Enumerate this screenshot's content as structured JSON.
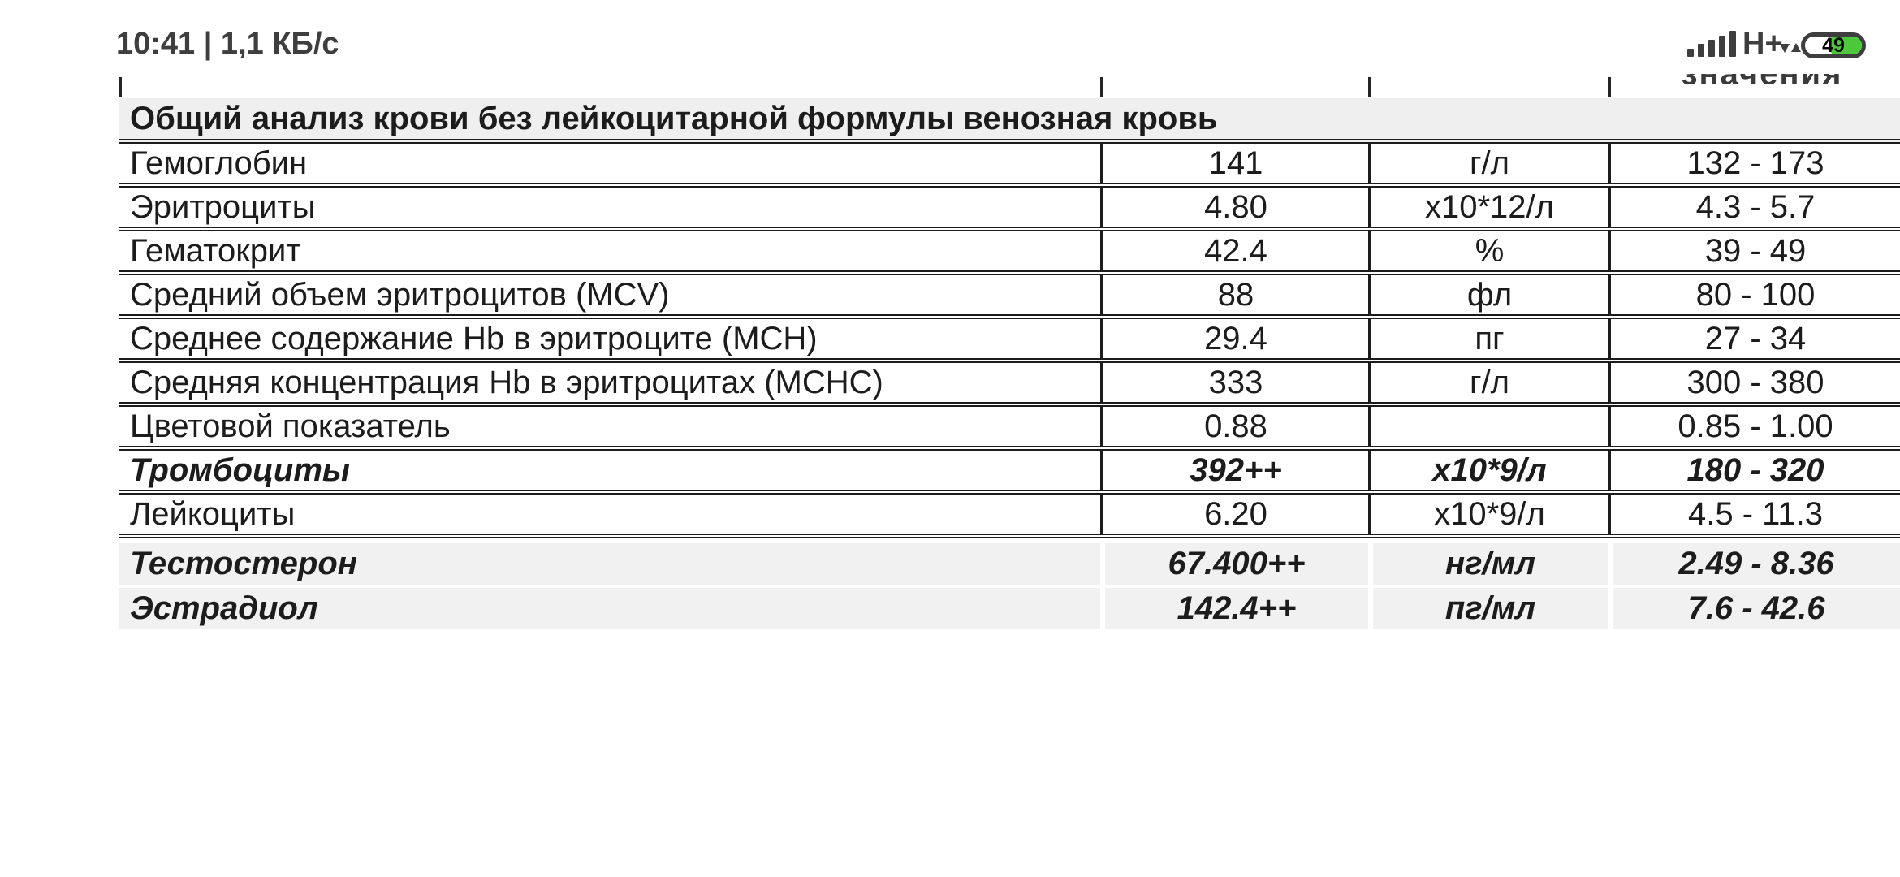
{
  "status_bar": {
    "left_text": "10:41 | 1,1 КБ/с",
    "network_type": "H+",
    "battery_percent": "49",
    "icons": {
      "signal": "signal-strength-bars",
      "data_transfer": "up-down-arrows",
      "battery": "battery-pill"
    },
    "colors": {
      "icon_gray": "#3e3e3e",
      "battery_green": "#4bc93a"
    }
  },
  "cutoff_header_fragment": "значения",
  "table": {
    "title": "Общий анализ крови без лейкоцитарной формулы венозная кровь",
    "rows": [
      {
        "name": "Гемоглобин",
        "value": "141",
        "unit": "г/л",
        "range": "132 - 173",
        "bold": false
      },
      {
        "name": "Эритроциты",
        "value": "4.80",
        "unit": "x10*12/л",
        "range": "4.3 - 5.7",
        "bold": false
      },
      {
        "name": "Гематокрит",
        "value": "42.4",
        "unit": "%",
        "range": "39 - 49",
        "bold": false
      },
      {
        "name": "Средний объем эритроцитов (MCV)",
        "value": "88",
        "unit": "фл",
        "range": "80 - 100",
        "bold": false
      },
      {
        "name": "Среднее содержание Hb в эритроците (MCH)",
        "value": "29.4",
        "unit": "пг",
        "range": "27 - 34",
        "bold": false
      },
      {
        "name": "Средняя концентрация Hb в эритроцитах (MCHC)",
        "value": "333",
        "unit": "г/л",
        "range": "300 - 380",
        "bold": false
      },
      {
        "name": "Цветовой показатель",
        "value": "0.88",
        "unit": "",
        "range": "0.85 - 1.00",
        "bold": false
      },
      {
        "name": "Тромбоциты",
        "value": "392++",
        "unit": "x10*9/л",
        "range": "180 - 320",
        "bold": true
      },
      {
        "name": "Лейкоциты",
        "value": "6.20",
        "unit": "x10*9/л",
        "range": "4.5 - 11.3",
        "bold": false
      }
    ],
    "highlighted_rows": [
      {
        "name": "Тестостерон",
        "value": "67.400++",
        "unit": "нг/мл",
        "range": "2.49 - 8.36"
      },
      {
        "name": "Эстрадиол",
        "value": "142.4++",
        "unit": "пг/мл",
        "range": "7.6 - 42.6"
      }
    ],
    "colors": {
      "header_background": "#efefef",
      "highlight_background": "#f1f1f1",
      "border": "#1c1c1c"
    }
  }
}
